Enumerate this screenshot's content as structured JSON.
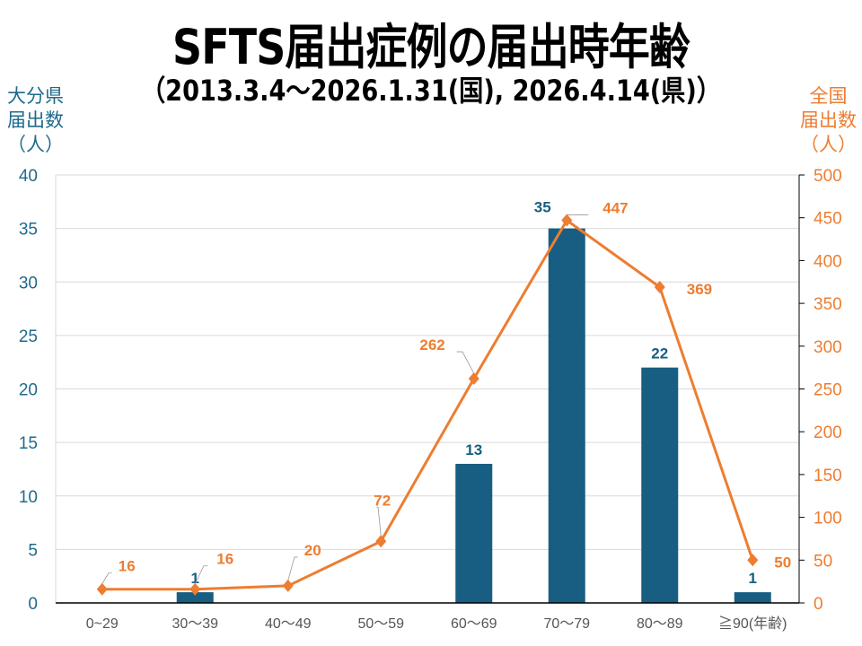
{
  "chart_data": {
    "type": "bar+line",
    "title": "SFTS届出症例の届出時年齢",
    "subtitle": "（2013.3.4～2026.1.31(国), 2026.4.14(県)）",
    "ylabel_left": "大分県\n届出数\n（人）",
    "ylabel_right": "全国\n届出数\n（人）",
    "categories": [
      "0~29",
      "30～39",
      "40～49",
      "50～59",
      "60～69",
      "70～79",
      "80～89",
      "≧90(年齢)"
    ],
    "series": [
      {
        "axis": "left",
        "type": "bar",
        "color": "#175e82",
        "values": [
          0,
          1,
          0,
          0,
          13,
          35,
          22,
          1
        ],
        "labels": [
          "",
          "1",
          "",
          "",
          "13",
          "35",
          "22",
          "1"
        ]
      },
      {
        "axis": "right",
        "type": "line",
        "color": "#ed7d31",
        "values": [
          16,
          16,
          20,
          72,
          262,
          447,
          369,
          50
        ],
        "labels": [
          "16",
          "16",
          "20",
          "72",
          "262",
          "447",
          "369",
          "50"
        ]
      }
    ],
    "ylim_left": [
      0,
      40
    ],
    "yticks_left": [
      0,
      5,
      10,
      15,
      20,
      25,
      30,
      35,
      40
    ],
    "ylim_right": [
      0,
      500
    ],
    "yticks_right": [
      0,
      50,
      100,
      150,
      200,
      250,
      300,
      350,
      400,
      450,
      500
    ],
    "grid": true,
    "legend": "none"
  }
}
